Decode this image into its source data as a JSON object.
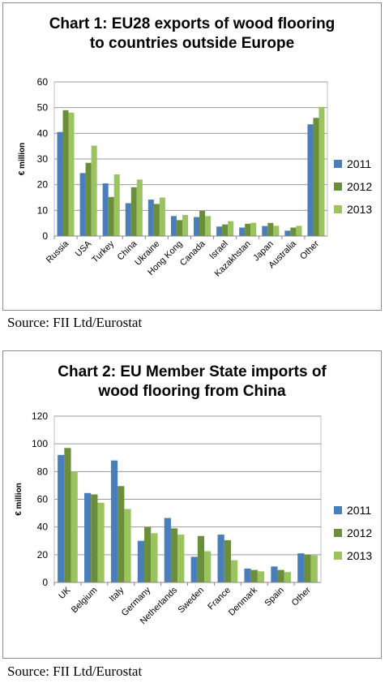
{
  "chart_data": [
    {
      "type": "bar",
      "title_line1": "Chart 1: EU28 exports of wood flooring",
      "title_line2": "to countries outside Europe",
      "ylabel": "€ million",
      "ylim": [
        0,
        60
      ],
      "yticks": [
        0,
        10,
        20,
        30,
        40,
        50,
        60
      ],
      "grid": true,
      "legend_position": "right",
      "categories": [
        "Russia",
        "USA",
        "Turkey",
        "China",
        "Ukraine",
        "Hong Kong",
        "Canada",
        "Israel",
        "Kazakhstan",
        "Japan",
        "Australia",
        "Other"
      ],
      "series": [
        {
          "name": "2011",
          "color": "#4a7ebb",
          "values": [
            40.5,
            24.5,
            20.5,
            12.8,
            14.2,
            7.8,
            7.4,
            3.7,
            3.3,
            3.9,
            2.1,
            43.5
          ]
        },
        {
          "name": "2012",
          "color": "#6b8e3a",
          "values": [
            49,
            28.5,
            15.2,
            19,
            12.5,
            6.2,
            9.8,
            4.5,
            4.8,
            5.1,
            3.3,
            46
          ]
        },
        {
          "name": "2013",
          "color": "#9bc45e",
          "values": [
            48,
            35.2,
            24,
            22,
            15,
            8.2,
            7.8,
            5.8,
            5.2,
            4,
            4,
            50.3
          ]
        }
      ],
      "source": "Source: FII Ltd/Eurostat"
    },
    {
      "type": "bar",
      "title_line1": "Chart 2: EU Member State imports of",
      "title_line2": "wood flooring from China",
      "ylabel": "€ million",
      "ylim": [
        0,
        120
      ],
      "yticks": [
        0,
        20,
        40,
        60,
        80,
        100,
        120
      ],
      "grid": true,
      "legend_position": "right",
      "categories": [
        "UK",
        "Belgium",
        "Italy",
        "Germany",
        "Netherlands",
        "Sweden",
        "France",
        "Denmark",
        "Spain",
        "Other"
      ],
      "series": [
        {
          "name": "2011",
          "color": "#4a7ebb",
          "values": [
            92,
            64.5,
            88,
            30,
            46.5,
            18.5,
            34.5,
            10,
            11.5,
            21
          ]
        },
        {
          "name": "2012",
          "color": "#6b8e3a",
          "values": [
            97,
            63.5,
            69.5,
            40,
            39,
            33.5,
            30.5,
            9,
            9,
            20
          ]
        },
        {
          "name": "2013",
          "color": "#9bc45e",
          "values": [
            80,
            57.5,
            53,
            35.5,
            34.5,
            22.5,
            16,
            8,
            7.5,
            19.5
          ]
        }
      ],
      "source": "Source: FII Ltd/Eurostat"
    }
  ]
}
